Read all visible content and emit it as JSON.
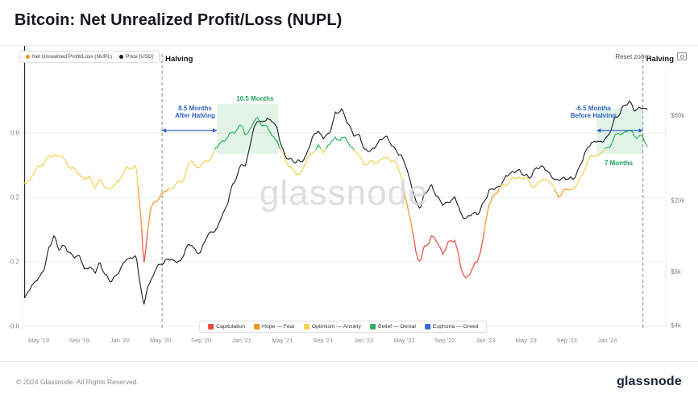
{
  "page": {
    "title": "Bitcoin: Net Unrealized Profit/Loss (NUPL)",
    "reset_zoom": "Reset zoom",
    "watermark": "glassnode",
    "footer": {
      "copyright": "© 2024 Glassnode. All Rights Reserved.",
      "logo": "glassnode"
    }
  },
  "chart_data": {
    "type": "line",
    "title": "Bitcoin: Net Unrealized Profit/Loss (NUPL)",
    "series": [
      {
        "name": "Net Unrealized Profit/Loss (NUPL)",
        "axis": "left",
        "style": "banded",
        "legend_dot_color": "#f7931a"
      },
      {
        "name": "Price [USD]",
        "axis": "right",
        "color": "#1b1b24"
      }
    ],
    "left_axis": {
      "range": [
        -0.62,
        1.0
      ],
      "ticks": [
        0.6,
        0.2,
        -0.2,
        -0.6
      ],
      "tick_labels": [
        "0.6",
        "0.2",
        "-0.2",
        "-0.6"
      ]
    },
    "right_axis": {
      "scale": "log",
      "range": [
        3800,
        110000
      ],
      "ticks": [
        60000,
        20000,
        8000,
        4000
      ],
      "tick_labels": [
        "$60k",
        "$20k",
        "$8k",
        "$4k"
      ]
    },
    "x_axis": {
      "tick_months": [
        0,
        4,
        8,
        12,
        16,
        20,
        24,
        28,
        32,
        36,
        40,
        44,
        48,
        52,
        56
      ],
      "tick_labels": [
        "May '19",
        "Sep '19",
        "Jan '20",
        "May '20",
        "Sep '20",
        "Jan '21",
        "May '21",
        "Sep '21",
        "Jan '22",
        "May '22",
        "Sep '22",
        "Jan '23",
        "May '23",
        "Sep '23",
        "Jan '24"
      ]
    },
    "bands": [
      {
        "label": "Capitulation",
        "color": "#e84c3d",
        "max": 0
      },
      {
        "label": "Hope — Fear",
        "color": "#f7931a",
        "max": 0.25
      },
      {
        "label": "Optimism — Anxiety",
        "color": "#eed34f",
        "max": 0.5
      },
      {
        "label": "Belief — Denial",
        "color": "#2fb35c",
        "max": 0.75
      },
      {
        "label": "Euphoria — Greed",
        "color": "#3b6be0",
        "max": 1.1
      }
    ],
    "halvings": {
      "label": "Halving",
      "months": [
        12.15,
        59.5
      ]
    },
    "highlight_spans": [
      {
        "from_month": 17.55,
        "to_month": 23.6,
        "from_value": 0.47,
        "to_value": 0.78,
        "color": "rgba(76,187,110,0.16)"
      },
      {
        "from_month": 54.95,
        "to_month": 59.5,
        "from_value": 0.47,
        "to_value": 0.75,
        "color": "rgba(76,187,110,0.16)"
      }
    ],
    "annotations": [
      {
        "id": "after-halving",
        "lines": [
          "8.5 Months",
          "After Halving"
        ],
        "color": "#2e62c8",
        "month": 15.4,
        "value": 0.74,
        "arrow": {
          "from_month": 12.15,
          "to_month": 17.55,
          "value": 0.615
        }
      },
      {
        "id": "duration-2021",
        "lines": [
          "10.5 Months"
        ],
        "color": "#1ea35f",
        "month": 21.3,
        "value": 0.8
      },
      {
        "id": "before-halving",
        "lines": [
          "-6.5 Months",
          "Before Halving"
        ],
        "color": "#2e62c8",
        "month": 54.6,
        "value": 0.74,
        "arrow": {
          "from_month": 54.95,
          "to_month": 59.5,
          "value": 0.615
        }
      },
      {
        "id": "duration-2024",
        "lines": [
          "7 Months"
        ],
        "color": "#1ea35f",
        "month": 57.1,
        "value": 0.4
      }
    ],
    "points_columns": [
      "month_from_may_2019",
      "nupl",
      "price_usd"
    ],
    "points": [
      [
        -1.5,
        0.28,
        5600
      ],
      [
        -0.8,
        0.33,
        6500
      ],
      [
        0,
        0.38,
        7300
      ],
      [
        0.6,
        0.42,
        8600
      ],
      [
        1,
        0.45,
        11000
      ],
      [
        1.5,
        0.48,
        12500
      ],
      [
        2,
        0.45,
        10600
      ],
      [
        2.6,
        0.42,
        11300
      ],
      [
        3,
        0.4,
        10300
      ],
      [
        3.6,
        0.37,
        9600
      ],
      [
        4,
        0.35,
        9700
      ],
      [
        4.5,
        0.3,
        8300
      ],
      [
        5,
        0.32,
        8600
      ],
      [
        5.6,
        0.28,
        8000
      ],
      [
        6,
        0.3,
        8800
      ],
      [
        6.6,
        0.26,
        7600
      ],
      [
        7,
        0.24,
        7200
      ],
      [
        7.5,
        0.28,
        7500
      ],
      [
        8,
        0.33,
        8100
      ],
      [
        8.6,
        0.36,
        9300
      ],
      [
        9,
        0.38,
        9600
      ],
      [
        9.6,
        0.4,
        9900
      ],
      [
        10.1,
        0.05,
        6200
      ],
      [
        10.35,
        -0.22,
        5000
      ],
      [
        10.7,
        -0.02,
        6600
      ],
      [
        11,
        0.1,
        6900
      ],
      [
        11.5,
        0.18,
        8500
      ],
      [
        12,
        0.22,
        8800
      ],
      [
        12.5,
        0.24,
        9100
      ],
      [
        13,
        0.25,
        9400
      ],
      [
        13.5,
        0.27,
        9200
      ],
      [
        14,
        0.3,
        9300
      ],
      [
        14.6,
        0.38,
        10900
      ],
      [
        15,
        0.42,
        11400
      ],
      [
        15.5,
        0.38,
        10300
      ],
      [
        16,
        0.4,
        10600
      ],
      [
        16.6,
        0.44,
        12800
      ],
      [
        17.1,
        0.46,
        13100
      ],
      [
        17.6,
        0.5,
        14100
      ],
      [
        18,
        0.55,
        16600
      ],
      [
        18.6,
        0.58,
        19200
      ],
      [
        19,
        0.6,
        23500
      ],
      [
        19.5,
        0.62,
        27000
      ],
      [
        20,
        0.63,
        33000
      ],
      [
        20.4,
        0.59,
        31500
      ],
      [
        21,
        0.66,
        46500
      ],
      [
        21.6,
        0.68,
        56500
      ],
      [
        22,
        0.65,
        55000
      ],
      [
        22.5,
        0.63,
        58500
      ],
      [
        23,
        0.6,
        55500
      ],
      [
        23.5,
        0.55,
        50000
      ],
      [
        23.8,
        0.48,
        42000
      ],
      [
        24.2,
        0.44,
        36500
      ],
      [
        24.7,
        0.4,
        34500
      ],
      [
        25.2,
        0.36,
        33000
      ],
      [
        25.8,
        0.35,
        32500
      ],
      [
        26.3,
        0.4,
        35500
      ],
      [
        27,
        0.5,
        46500
      ],
      [
        27.5,
        0.52,
        48500
      ],
      [
        28,
        0.48,
        44500
      ],
      [
        28.6,
        0.52,
        48000
      ],
      [
        29.2,
        0.57,
        61500
      ],
      [
        29.8,
        0.58,
        64000
      ],
      [
        30.3,
        0.54,
        56500
      ],
      [
        31,
        0.5,
        47500
      ],
      [
        31.6,
        0.46,
        46500
      ],
      [
        32,
        0.42,
        38500
      ],
      [
        32.6,
        0.4,
        37500
      ],
      [
        33,
        0.41,
        40000
      ],
      [
        33.6,
        0.44,
        43500
      ],
      [
        34,
        0.45,
        45500
      ],
      [
        34.6,
        0.43,
        42500
      ],
      [
        35,
        0.42,
        39500
      ],
      [
        35.7,
        0.34,
        36000
      ],
      [
        36.2,
        0.18,
        30500
      ],
      [
        36.7,
        0.02,
        24000
      ],
      [
        37.2,
        -0.16,
        19500
      ],
      [
        37.6,
        -0.2,
        18500
      ],
      [
        38,
        -0.1,
        22000
      ],
      [
        38.7,
        -0.04,
        23800
      ],
      [
        39.3,
        -0.1,
        20800
      ],
      [
        39.8,
        -0.14,
        19500
      ],
      [
        40.3,
        -0.08,
        19300
      ],
      [
        41,
        -0.06,
        20600
      ],
      [
        41.6,
        -0.26,
        17000
      ],
      [
        42,
        -0.3,
        15900
      ],
      [
        42.6,
        -0.24,
        16800
      ],
      [
        43.2,
        -0.21,
        16600
      ],
      [
        43.8,
        -0.05,
        19500
      ],
      [
        44.3,
        0.15,
        22800
      ],
      [
        44.8,
        0.23,
        23200
      ],
      [
        45.4,
        0.24,
        23600
      ],
      [
        46,
        0.28,
        27800
      ],
      [
        46.6,
        0.32,
        29000
      ],
      [
        47.2,
        0.33,
        29100
      ],
      [
        47.8,
        0.31,
        28000
      ],
      [
        48.3,
        0.29,
        27300
      ],
      [
        49,
        0.28,
        30300
      ],
      [
        49.6,
        0.31,
        30600
      ],
      [
        50.2,
        0.3,
        29200
      ],
      [
        50.8,
        0.25,
        26400
      ],
      [
        51.4,
        0.22,
        26000
      ],
      [
        52,
        0.24,
        26600
      ],
      [
        52.6,
        0.25,
        26800
      ],
      [
        53.2,
        0.3,
        30000
      ],
      [
        53.7,
        0.38,
        35500
      ],
      [
        54.4,
        0.44,
        42500
      ],
      [
        55,
        0.47,
        43700
      ],
      [
        55.5,
        0.49,
        42500
      ],
      [
        56.1,
        0.51,
        45500
      ],
      [
        56.7,
        0.56,
        57500
      ],
      [
        57.2,
        0.6,
        62500
      ],
      [
        57.7,
        0.62,
        68500
      ],
      [
        58.2,
        0.61,
        70500
      ],
      [
        58.7,
        0.57,
        64000
      ],
      [
        59.2,
        0.58,
        67500
      ],
      [
        59.6,
        0.56,
        66000
      ],
      [
        60,
        0.53,
        64300
      ]
    ]
  }
}
